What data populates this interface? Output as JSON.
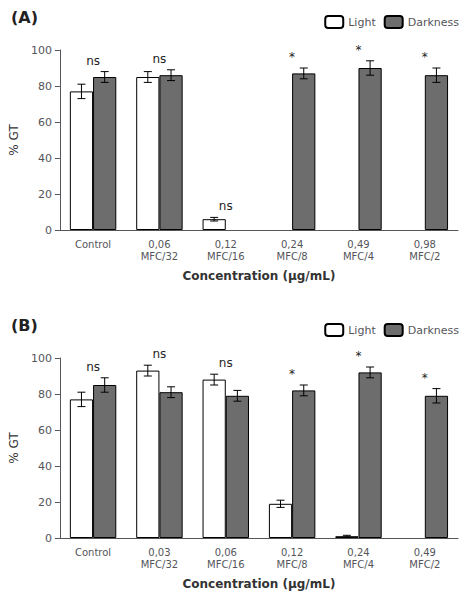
{
  "chart_data": [
    {
      "type": "bar",
      "title": "(A)",
      "categories": [
        "Control",
        "0,06\nMFC/32",
        "0,12\nMFC/16",
        "0,24\nMFC/8",
        "0,49\nMFC/4",
        "0,98\nMFC/2"
      ],
      "series": [
        {
          "name": "Light",
          "color": "white",
          "values": [
            77,
            85,
            6,
            null,
            null,
            null
          ],
          "errors": [
            4,
            3,
            1,
            null,
            null,
            null
          ]
        },
        {
          "name": "Darkness",
          "color": "#6d6d6d",
          "values": [
            85,
            86,
            null,
            87,
            90,
            86
          ],
          "errors": [
            3,
            3,
            null,
            3,
            4,
            4
          ]
        }
      ],
      "annotations": [
        "ns",
        "ns",
        "ns",
        "*",
        "*",
        "*"
      ],
      "xlabel": "Concentration (µg/mL)",
      "ylabel": "% GT",
      "ylim": [
        0,
        100
      ],
      "yticks": [
        0,
        20,
        40,
        60,
        80,
        100
      ],
      "grid": false,
      "legend": "upper right"
    },
    {
      "type": "bar",
      "title": "(B)",
      "categories": [
        "Control",
        "0,03\nMFC/32",
        "0,06\nMFC/16",
        "0,12\nMFC/8",
        "0,24\nMFC/4",
        "0,49\nMFC/2"
      ],
      "series": [
        {
          "name": "Light",
          "color": "white",
          "values": [
            77,
            93,
            88,
            19,
            1,
            null
          ],
          "errors": [
            4,
            3,
            3,
            2,
            0.5,
            null
          ]
        },
        {
          "name": "Darkness",
          "color": "#6d6d6d",
          "values": [
            85,
            81,
            79,
            82,
            92,
            79
          ],
          "errors": [
            4,
            3,
            3,
            3,
            3,
            4
          ]
        }
      ],
      "annotations": [
        "ns",
        "ns",
        "ns",
        "*",
        "*",
        "*"
      ],
      "xlabel": "Concentration (µg/mL)",
      "ylabel": "% GT",
      "ylim": [
        0,
        100
      ],
      "yticks": [
        0,
        20,
        40,
        60,
        80,
        100
      ],
      "grid": false,
      "legend": "upper right"
    }
  ]
}
